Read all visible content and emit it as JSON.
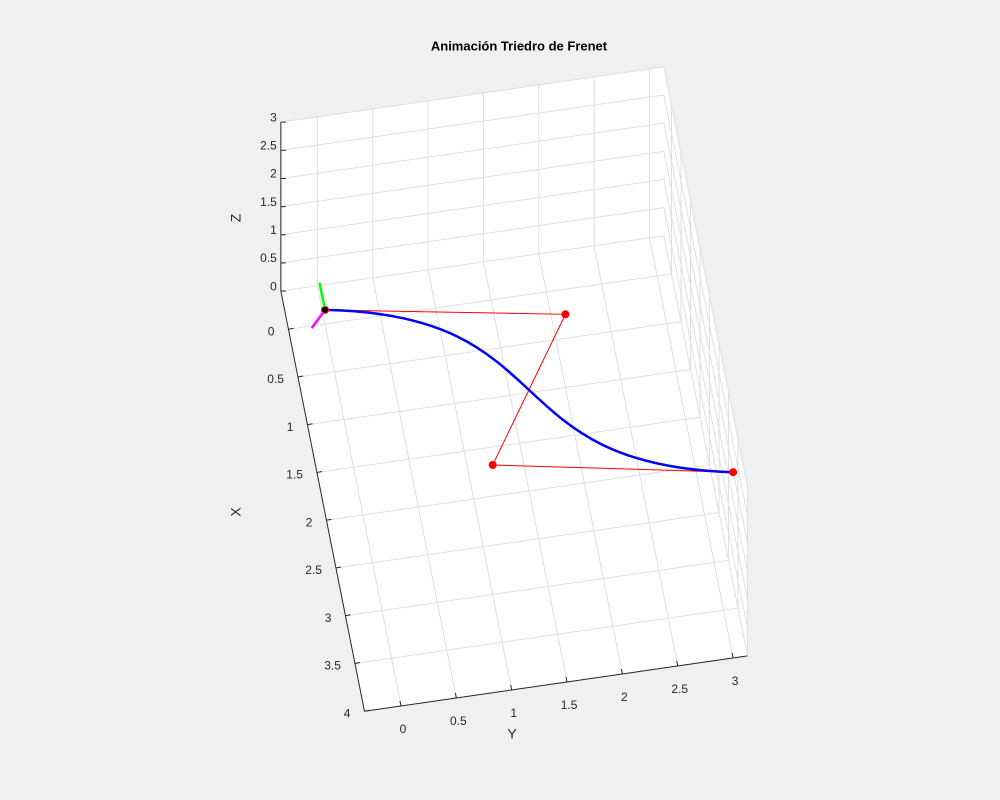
{
  "chart_data": {
    "type": "bezier3d",
    "title": "Animación Triedro de Frenet",
    "xlabel": "X",
    "ylabel": "Y",
    "zlabel": "Z",
    "xlim": [
      -0.4,
      4
    ],
    "ylim": [
      -0.33,
      3.13
    ],
    "zlim": [
      0,
      3
    ],
    "xticks": [
      0,
      0.5,
      1,
      1.5,
      2,
      2.5,
      3,
      3.5,
      4
    ],
    "yticks": [
      0,
      0.5,
      1,
      1.5,
      2,
      2.5,
      3
    ],
    "zticks": [
      0,
      0.5,
      1,
      1.5,
      2,
      2.5,
      3
    ],
    "grid": true,
    "control_points": {
      "x": [
        0,
        1,
        3,
        4
      ],
      "y": [
        0,
        2,
        1,
        3
      ],
      "z": [
        0.25,
        1.3,
        2.3,
        3.3
      ],
      "color": "#ff0000"
    },
    "curve_color": "#0000ff",
    "frame": {
      "vectors": [
        {
          "vector": [
            0,
            -0.05,
            0.5
          ],
          "color": "#00ff00"
        },
        {
          "vector": [
            0,
            -0.12,
            -0.29
          ],
          "color": "#ff00ff"
        }
      ],
      "point_color": "#000000"
    }
  }
}
